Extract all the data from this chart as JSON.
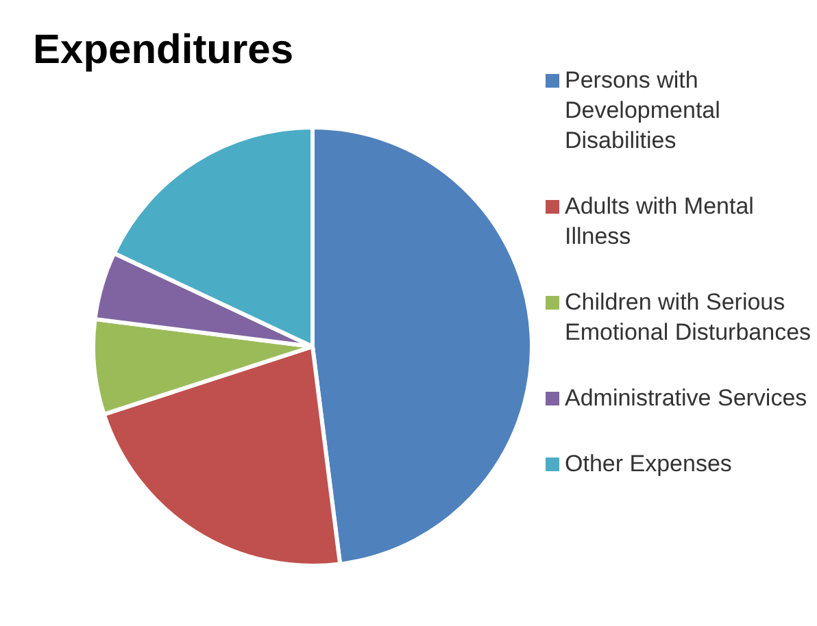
{
  "chart_data": {
    "type": "pie",
    "title": "Expenditures",
    "categories": [
      "Persons with Developmental Disabilities",
      "Adults with Mental Illness",
      "Children with Serious Emotional Disturbances",
      "Administrative Services",
      "Other Expenses"
    ],
    "values": [
      48,
      22,
      7,
      5,
      18
    ],
    "colors": [
      "#4f81bd",
      "#c0504d",
      "#9bbb59",
      "#8064a2",
      "#4bacc6"
    ],
    "legend": "right"
  }
}
